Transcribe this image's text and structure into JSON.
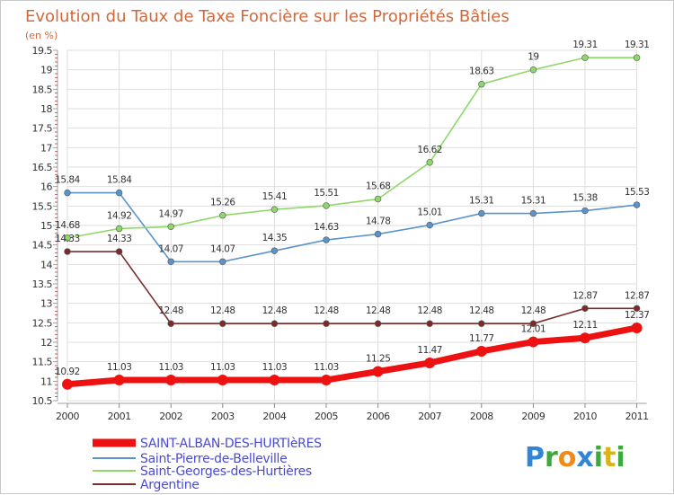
{
  "chart_data": {
    "type": "line",
    "title": "Evolution du Taux de Taxe Foncière sur les Propriétés Bâties",
    "subtitle": "(en %)",
    "xlabel": "",
    "ylabel": "",
    "ylim": [
      10.5,
      19.5
    ],
    "y_ticks": [
      "10.5",
      "11",
      "11.5",
      "12",
      "12.5",
      "13",
      "13.5",
      "14",
      "14.5",
      "15",
      "15.5",
      "16",
      "16.5",
      "17",
      "17.5",
      "18",
      "18.5",
      "19",
      "19.5"
    ],
    "categories": [
      "2000",
      "2001",
      "2002",
      "2003",
      "2004",
      "2005",
      "2006",
      "2007",
      "2008",
      "2009",
      "2010",
      "2011"
    ],
    "grid": true,
    "legend_position": "bottom-left",
    "series": [
      {
        "name": "SAINT-ALBAN-DES-HURTIèRES",
        "color": "#ee1111",
        "values": [
          10.92,
          11.03,
          11.03,
          11.03,
          11.03,
          11.03,
          11.25,
          11.47,
          11.77,
          12.01,
          12.11,
          12.37
        ],
        "labels": [
          "10.92",
          "11.03",
          "11.03",
          "11.03",
          "11.03",
          "11.03",
          "11.25",
          "11.47",
          "11.77",
          "12.01",
          "12.11",
          "12.37"
        ]
      },
      {
        "name": "Saint-Pierre-de-Belleville",
        "color": "#5b93cc",
        "values": [
          15.84,
          15.84,
          14.07,
          14.07,
          14.35,
          14.63,
          14.78,
          15.01,
          15.31,
          15.31,
          15.38,
          15.53
        ],
        "labels": [
          "15.84",
          "15.84",
          "14.07",
          "14.07",
          "14.35",
          "14.63",
          "14.78",
          "15.01",
          "15.31",
          "15.31",
          "15.38",
          "15.53"
        ]
      },
      {
        "name": "Saint-Georges-des-Hurtières",
        "color": "#8ed86a",
        "values": [
          14.68,
          14.92,
          14.97,
          15.26,
          15.41,
          15.51,
          15.68,
          16.62,
          18.63,
          19.0,
          19.31,
          19.31
        ],
        "labels": [
          "14.68",
          "14.92",
          "14.97",
          "15.26",
          "15.41",
          "15.51",
          "15.68",
          "16.62",
          "18.63",
          "19",
          "19.31",
          "19.31"
        ]
      },
      {
        "name": "Argentine",
        "color": "#7a2c2c",
        "values": [
          14.33,
          14.33,
          12.48,
          12.48,
          12.48,
          12.48,
          12.48,
          12.48,
          12.48,
          12.48,
          12.87,
          12.87
        ],
        "labels": [
          "14.33",
          "14.33",
          "12.48",
          "12.48",
          "12.48",
          "12.48",
          "12.48",
          "12.48",
          "12.48",
          "12.48",
          "12.87",
          "12.87"
        ]
      }
    ]
  },
  "logo": {
    "text": "Proxiti"
  },
  "colors": {
    "title": "#d2683a",
    "grid": "#d8d8d8",
    "axis": "#999999"
  }
}
